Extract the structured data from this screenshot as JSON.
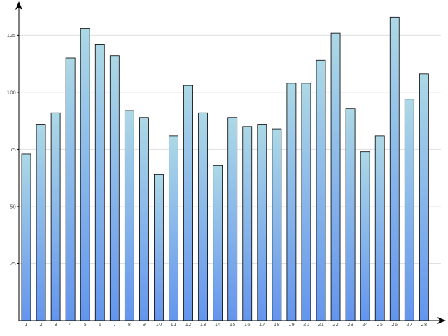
{
  "colors": {
    "bar_top": "#add8e6",
    "bar_bottom": "#6495ed",
    "bar_stroke": "#000000",
    "grid": "#e0e0e0",
    "axis": "#000000",
    "tick_text": "#555555"
  },
  "chart_data": {
    "type": "bar",
    "categories": [
      "1",
      "2",
      "3",
      "4",
      "5",
      "6",
      "7",
      "8",
      "9",
      "10",
      "11",
      "12",
      "13",
      "14",
      "15",
      "16",
      "17",
      "18",
      "19",
      "20",
      "21",
      "22",
      "23",
      "24",
      "25",
      "26",
      "27",
      "28"
    ],
    "values": [
      73,
      86,
      91,
      115,
      128,
      121,
      116,
      92,
      89,
      64,
      81,
      103,
      91,
      68,
      89,
      85,
      86,
      84,
      104,
      104,
      114,
      126,
      93,
      74,
      81,
      133,
      97,
      108
    ],
    "yticks": [
      25,
      50,
      75,
      100,
      125
    ],
    "ytick_labels": [
      "25",
      "50",
      "75",
      "100",
      "125"
    ],
    "ylim": [
      0,
      138
    ],
    "grid": true,
    "legend": "none",
    "title": "",
    "xlabel": "",
    "ylabel": ""
  }
}
